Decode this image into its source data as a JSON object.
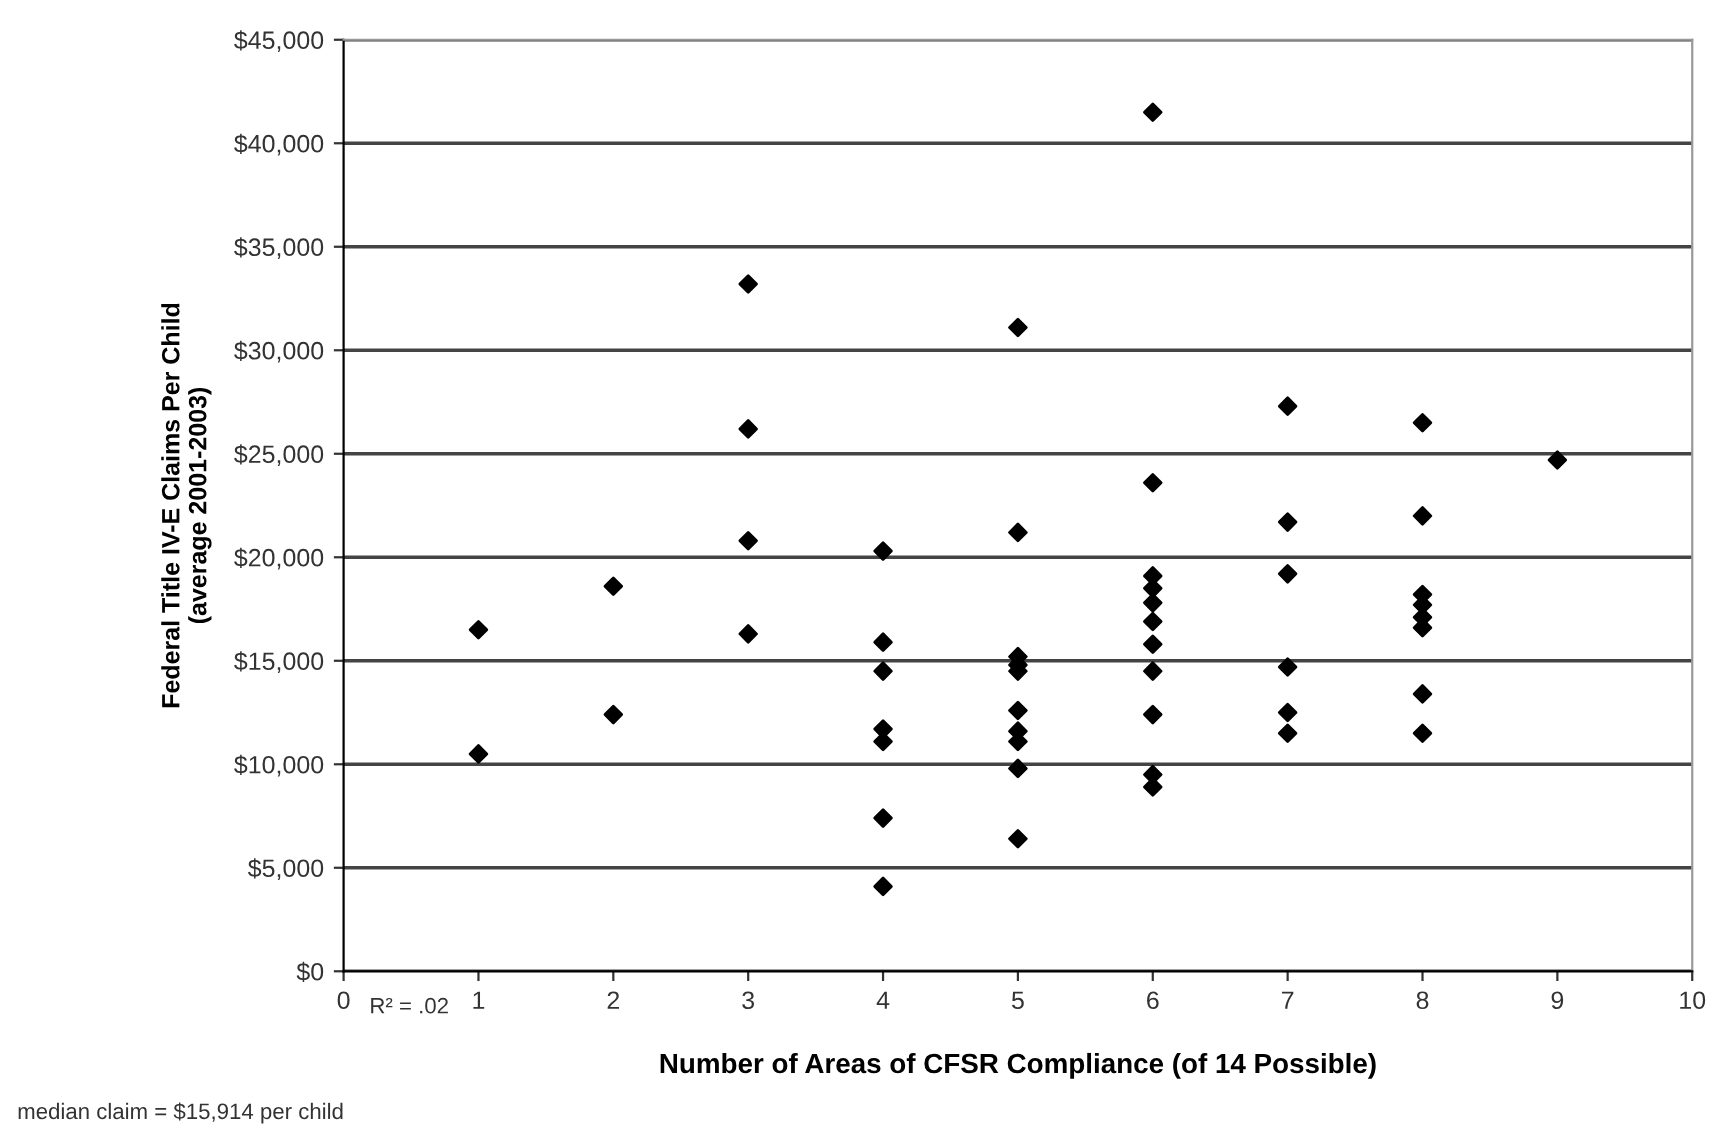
{
  "chart_data": {
    "type": "scatter",
    "xlabel": "Number of Areas of CFSR Compliance (of 14 Possible)",
    "ylabel": "Federal Title IV-E Claims Per Child\n(average 2001-2003)",
    "x": [
      1,
      1,
      2,
      2,
      3,
      3,
      3,
      3,
      4,
      4,
      4,
      4,
      4,
      4,
      4,
      5,
      5,
      5,
      5,
      5,
      5,
      5,
      5,
      5,
      5,
      6,
      6,
      6,
      6,
      6,
      6,
      6,
      6,
      6,
      6,
      6,
      7,
      7,
      7,
      7,
      7,
      7,
      8,
      8,
      8,
      8,
      8,
      8,
      8,
      8,
      9
    ],
    "series": [
      {
        "color": "#000000",
        "values": [
          16500,
          10500,
          18600,
          12400,
          33200,
          26200,
          20800,
          16300,
          20300,
          15900,
          14500,
          11700,
          11100,
          7400,
          4100,
          31100,
          21200,
          15200,
          14800,
          14500,
          12600,
          11600,
          11100,
          9800,
          6400,
          41500,
          23600,
          19100,
          18500,
          17800,
          16900,
          15800,
          14500,
          12400,
          9500,
          8900,
          27300,
          21700,
          19200,
          14700,
          12500,
          11500,
          26500,
          22000,
          18200,
          17700,
          17100,
          16600,
          13400,
          11500,
          24700
        ]
      }
    ],
    "marker": "diamond",
    "grid": "y",
    "xlim": [
      0,
      10
    ],
    "xticks": [
      0,
      1,
      2,
      3,
      4,
      5,
      6,
      7,
      8,
      9,
      10
    ],
    "ylim": [
      0,
      45000
    ],
    "yticks": [
      {
        "value": 0,
        "label": "$0"
      },
      {
        "value": 5000,
        "label": "$5,000"
      },
      {
        "value": 10000,
        "label": "$10,000"
      },
      {
        "value": 15000,
        "label": "$15,000"
      },
      {
        "value": 20000,
        "label": "$20,000"
      },
      {
        "value": 25000,
        "label": "$25,000"
      },
      {
        "value": 30000,
        "label": "$30,000"
      },
      {
        "value": 35000,
        "label": "$35,000"
      },
      {
        "value": 40000,
        "label": "$40,000"
      },
      {
        "value": 45000,
        "label": "$45,000"
      }
    ],
    "annotations": [
      "R² = .02",
      "median claim = $15,914 per child"
    ]
  }
}
